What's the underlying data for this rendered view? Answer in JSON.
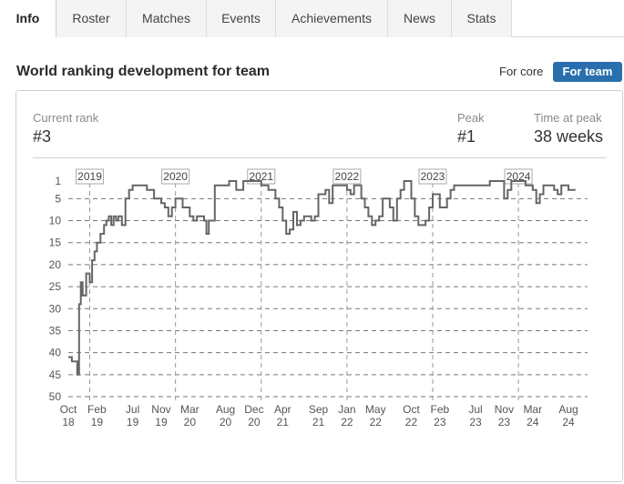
{
  "tabs": [
    {
      "label": "Info",
      "active": true
    },
    {
      "label": "Roster",
      "active": false
    },
    {
      "label": "Matches",
      "active": false
    },
    {
      "label": "Events",
      "active": false
    },
    {
      "label": "Achievements",
      "active": false
    },
    {
      "label": "News",
      "active": false
    },
    {
      "label": "Stats",
      "active": false
    }
  ],
  "section_title": "World ranking development for team",
  "toggle": {
    "core_label": "For core",
    "team_label": "For team",
    "selected": "For team",
    "selected_color": "#2a6fad"
  },
  "stats": {
    "current_rank_label": "Current rank",
    "current_rank_value": "#3",
    "peak_label": "Peak",
    "peak_value": "#1",
    "time_at_peak_label": "Time at peak",
    "time_at_peak_value": "38 weeks"
  },
  "chart_data": {
    "type": "line",
    "y_axis_inverted": true,
    "ylim": [
      1,
      50
    ],
    "y_ticks": [
      1,
      5,
      10,
      15,
      20,
      25,
      30,
      35,
      40,
      45,
      50
    ],
    "grid": "dashed horizontal at each y tick",
    "line_color": "#666666",
    "x_ticks": [
      {
        "month": "Oct",
        "year": "18"
      },
      {
        "month": "Feb",
        "year": "19"
      },
      {
        "month": "Jul",
        "year": "19"
      },
      {
        "month": "Nov",
        "year": "19"
      },
      {
        "month": "Mar",
        "year": "20"
      },
      {
        "month": "Aug",
        "year": "20"
      },
      {
        "month": "Dec",
        "year": "20"
      },
      {
        "month": "Apr",
        "year": "21"
      },
      {
        "month": "Sep",
        "year": "21"
      },
      {
        "month": "Jan",
        "year": "22"
      },
      {
        "month": "May",
        "year": "22"
      },
      {
        "month": "Oct",
        "year": "22"
      },
      {
        "month": "Feb",
        "year": "23"
      },
      {
        "month": "Jul",
        "year": "23"
      },
      {
        "month": "Nov",
        "year": "23"
      },
      {
        "month": "Mar",
        "year": "24"
      },
      {
        "month": "Aug",
        "year": "24"
      }
    ],
    "year_markers": [
      {
        "label": "2019",
        "date": "2019-01"
      },
      {
        "label": "2020",
        "date": "2020-01"
      },
      {
        "label": "2021",
        "date": "2021-01"
      },
      {
        "label": "2022",
        "date": "2022-01"
      },
      {
        "label": "2023",
        "date": "2023-01"
      },
      {
        "label": "2024",
        "date": "2024-01"
      }
    ],
    "series": [
      {
        "points": [
          [
            "2018-10",
            41
          ],
          [
            "2018-10",
            42
          ],
          [
            "2018-11",
            42
          ],
          [
            "2018-11",
            45
          ],
          [
            "2018-11",
            29
          ],
          [
            "2018-11",
            24
          ],
          [
            "2018-12",
            27
          ],
          [
            "2018-12",
            22
          ],
          [
            "2019-01",
            24
          ],
          [
            "2019-01",
            19
          ],
          [
            "2019-01",
            17
          ],
          [
            "2019-02",
            15
          ],
          [
            "2019-02",
            13
          ],
          [
            "2019-03",
            11
          ],
          [
            "2019-03",
            10
          ],
          [
            "2019-03",
            9
          ],
          [
            "2019-04",
            11
          ],
          [
            "2019-04",
            9
          ],
          [
            "2019-04",
            10
          ],
          [
            "2019-05",
            9
          ],
          [
            "2019-05",
            11
          ],
          [
            "2019-06",
            5
          ],
          [
            "2019-06",
            3
          ],
          [
            "2019-07",
            2
          ],
          [
            "2019-08",
            2
          ],
          [
            "2019-09",
            3
          ],
          [
            "2019-10",
            5
          ],
          [
            "2019-11",
            6
          ],
          [
            "2019-11",
            7
          ],
          [
            "2019-12",
            9
          ],
          [
            "2019-12",
            7
          ],
          [
            "2020-01",
            5
          ],
          [
            "2020-02",
            7
          ],
          [
            "2020-03",
            9
          ],
          [
            "2020-03",
            10
          ],
          [
            "2020-04",
            9
          ],
          [
            "2020-05",
            10
          ],
          [
            "2020-05",
            13
          ],
          [
            "2020-05",
            10
          ],
          [
            "2020-06",
            10
          ],
          [
            "2020-06",
            2
          ],
          [
            "2020-07",
            2
          ],
          [
            "2020-08",
            2
          ],
          [
            "2020-08",
            1
          ],
          [
            "2020-09",
            1
          ],
          [
            "2020-09",
            3
          ],
          [
            "2020-10",
            3
          ],
          [
            "2020-10",
            1
          ],
          [
            "2020-11",
            1
          ],
          [
            "2020-12",
            1
          ],
          [
            "2021-01",
            2
          ],
          [
            "2021-02",
            3
          ],
          [
            "2021-03",
            5
          ],
          [
            "2021-03",
            7
          ],
          [
            "2021-04",
            10
          ],
          [
            "2021-04",
            13
          ],
          [
            "2021-05",
            12
          ],
          [
            "2021-05",
            8
          ],
          [
            "2021-06",
            11
          ],
          [
            "2021-06",
            10
          ],
          [
            "2021-07",
            9
          ],
          [
            "2021-08",
            10
          ],
          [
            "2021-08",
            9
          ],
          [
            "2021-09",
            4
          ],
          [
            "2021-10",
            3
          ],
          [
            "2021-10",
            6
          ],
          [
            "2021-11",
            2
          ],
          [
            "2021-12",
            2
          ],
          [
            "2022-01",
            3
          ],
          [
            "2022-01",
            4
          ],
          [
            "2022-02",
            2
          ],
          [
            "2022-03",
            5
          ],
          [
            "2022-03",
            7
          ],
          [
            "2022-04",
            9
          ],
          [
            "2022-04",
            11
          ],
          [
            "2022-05",
            10
          ],
          [
            "2022-05",
            9
          ],
          [
            "2022-06",
            5
          ],
          [
            "2022-07",
            7
          ],
          [
            "2022-07",
            10
          ],
          [
            "2022-08",
            5
          ],
          [
            "2022-08",
            3
          ],
          [
            "2022-09",
            1
          ],
          [
            "2022-09",
            1
          ],
          [
            "2022-10",
            5
          ],
          [
            "2022-10",
            9
          ],
          [
            "2022-11",
            11
          ],
          [
            "2022-12",
            10
          ],
          [
            "2022-12",
            7
          ],
          [
            "2023-01",
            4
          ],
          [
            "2023-02",
            7
          ],
          [
            "2023-03",
            5
          ],
          [
            "2023-03",
            3
          ],
          [
            "2023-04",
            2
          ],
          [
            "2023-05",
            2
          ],
          [
            "2023-06",
            2
          ],
          [
            "2023-07",
            2
          ],
          [
            "2023-08",
            2
          ],
          [
            "2023-09",
            1
          ],
          [
            "2023-10",
            1
          ],
          [
            "2023-11",
            5
          ],
          [
            "2023-11",
            3
          ],
          [
            "2023-12",
            1
          ],
          [
            "2024-01",
            1
          ],
          [
            "2024-02",
            2
          ],
          [
            "2024-03",
            3
          ],
          [
            "2024-03",
            6
          ],
          [
            "2024-04",
            4
          ],
          [
            "2024-04",
            2
          ],
          [
            "2024-05",
            2
          ],
          [
            "2024-06",
            3
          ],
          [
            "2024-06",
            4
          ],
          [
            "2024-07",
            2
          ],
          [
            "2024-07",
            2
          ],
          [
            "2024-08",
            3
          ],
          [
            "2024-09",
            3
          ]
        ]
      }
    ]
  }
}
